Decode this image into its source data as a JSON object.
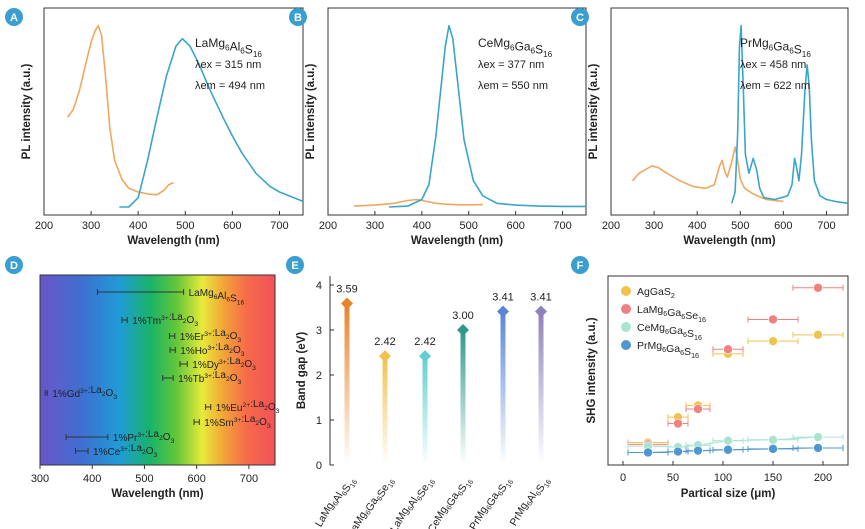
{
  "colors": {
    "badge": "#3a9fd0",
    "blue": "#3aa5c8",
    "orange": "#eea85f",
    "agg": "#f2c24e",
    "lamg": "#ef8181",
    "cemg": "#a8e4d0",
    "prmg": "#4f97d3"
  },
  "chart_data": [
    {
      "panel": "A",
      "type": "line",
      "xlabel": "Wavelength (nm)",
      "ylabel": "PL intensity (a.u.)",
      "xlim": [
        200,
        750
      ],
      "xticks": [
        "200",
        "300",
        "400",
        "500",
        "600",
        "700"
      ],
      "annot": {
        "compound": "LaMg6Al6S16",
        "ex": "λex = 315 nm",
        "em": "λem = 494 nm"
      },
      "series": [
        {
          "role": "excitation",
          "color": "orange",
          "x": [
            250,
            262,
            275,
            290,
            300,
            308,
            315,
            322,
            330,
            340,
            350,
            365,
            380,
            400,
            420,
            440,
            455,
            465,
            475
          ],
          "y": [
            0.48,
            0.52,
            0.62,
            0.78,
            0.88,
            0.94,
            0.97,
            0.92,
            0.72,
            0.42,
            0.25,
            0.15,
            0.1,
            0.08,
            0.07,
            0.065,
            0.09,
            0.12,
            0.13
          ]
        },
        {
          "role": "emission",
          "color": "blue",
          "x": [
            360,
            380,
            400,
            420,
            440,
            460,
            480,
            494,
            510,
            530,
            550,
            580,
            600,
            620,
            650,
            680,
            700,
            720,
            750
          ],
          "y": [
            0.0,
            0.0,
            0.05,
            0.25,
            0.48,
            0.7,
            0.86,
            0.9,
            0.86,
            0.76,
            0.64,
            0.48,
            0.38,
            0.29,
            0.18,
            0.11,
            0.08,
            0.06,
            0.03
          ]
        }
      ]
    },
    {
      "panel": "B",
      "type": "line",
      "xlabel": "Wavelength (nm)",
      "ylabel": "PL intensity (a.u.)",
      "xlim": [
        200,
        750
      ],
      "xticks": [
        "200",
        "300",
        "400",
        "500",
        "600",
        "700"
      ],
      "annot": {
        "compound": "CeMg6Ga6S16",
        "ex": "λex = 377 nm",
        "em": "λem = 550 nm"
      },
      "series": [
        {
          "role": "excitation",
          "color": "orange",
          "x": [
            255,
            300,
            340,
            370,
            390,
            410,
            430,
            450,
            480,
            510,
            530
          ],
          "y": [
            0.005,
            0.01,
            0.02,
            0.035,
            0.04,
            0.03,
            0.02,
            0.015,
            0.012,
            0.012,
            0.013
          ]
        },
        {
          "role": "emission",
          "color": "blue",
          "x": [
            330,
            370,
            400,
            415,
            430,
            440,
            450,
            458,
            466,
            475,
            490,
            510,
            530,
            560,
            600,
            650,
            700,
            750
          ],
          "y": [
            0.0,
            0.005,
            0.04,
            0.12,
            0.38,
            0.62,
            0.86,
            0.97,
            0.9,
            0.7,
            0.36,
            0.14,
            0.06,
            0.02,
            0.01,
            0.005,
            0.003,
            0.003
          ]
        }
      ]
    },
    {
      "panel": "C",
      "type": "line",
      "xlabel": "Wavelength (nm)",
      "ylabel": "PL intensity (a.u.)",
      "xlim": [
        200,
        750
      ],
      "xticks": [
        "200",
        "300",
        "400",
        "500",
        "600",
        "700"
      ],
      "annot": {
        "compound": "PrMg6Ga6S16",
        "ex": "λex = 458 nm",
        "em": "λem = 622 nm"
      },
      "series": [
        {
          "role": "excitation",
          "color": "orange",
          "x": [
            250,
            265,
            280,
            295,
            310,
            330,
            360,
            390,
            420,
            440,
            452,
            458,
            464,
            470,
            480,
            488,
            492,
            500,
            510,
            530,
            560,
            600
          ],
          "y": [
            0.14,
            0.18,
            0.2,
            0.22,
            0.21,
            0.18,
            0.14,
            0.11,
            0.1,
            0.12,
            0.22,
            0.25,
            0.19,
            0.16,
            0.24,
            0.32,
            0.28,
            0.15,
            0.1,
            0.07,
            0.04,
            0.03
          ]
        },
        {
          "role": "emission",
          "color": "blue",
          "x": [
            480,
            488,
            494,
            498,
            502,
            506,
            512,
            520,
            530,
            538,
            545,
            555,
            580,
            610,
            620,
            626,
            630,
            636,
            642,
            650,
            655,
            660,
            665,
            672,
            685,
            700,
            720,
            750
          ],
          "y": [
            0.02,
            0.08,
            0.4,
            0.85,
            0.97,
            0.7,
            0.28,
            0.18,
            0.26,
            0.2,
            0.1,
            0.05,
            0.04,
            0.06,
            0.12,
            0.26,
            0.22,
            0.14,
            0.28,
            0.62,
            0.76,
            0.65,
            0.36,
            0.14,
            0.06,
            0.04,
            0.03,
            0.02
          ]
        }
      ]
    },
    {
      "panel": "D",
      "type": "scatter",
      "xlabel": "Wavelength (nm)",
      "xlim": [
        300,
        750
      ],
      "xticks": [
        "300",
        "400",
        "500",
        "600",
        "700"
      ],
      "rows": [
        {
          "label": "LaMg6Al6S16",
          "center": 494,
          "lo": 410,
          "hi": 575
        },
        {
          "label": "1%Tm3+:La2O3",
          "center": 462,
          "lo": 457,
          "hi": 467
        },
        {
          "label": "1%Er3+:La2O3",
          "center": 553,
          "lo": 548,
          "hi": 558
        },
        {
          "label": "1%Ho3+:La2O3",
          "center": 554,
          "lo": 549,
          "hi": 559
        },
        {
          "label": "1%Dy3+:La2O3",
          "center": 575,
          "lo": 568,
          "hi": 582
        },
        {
          "label": "1%Tb3+:La2O3",
          "center": 545,
          "lo": 535,
          "hi": 555
        },
        {
          "label": "1%Gd3+:La2O3",
          "center": 312,
          "lo": 310,
          "hi": 314
        },
        {
          "label": "1%Eu2+:La2O3",
          "center": 622,
          "lo": 617,
          "hi": 627
        },
        {
          "label": "1%Sm3+:La2O3",
          "center": 600,
          "lo": 595,
          "hi": 605
        },
        {
          "label": "1%Pr3+:La2O3",
          "center": 390,
          "lo": 350,
          "hi": 430
        },
        {
          "label": "1%Ce3+:La2O3",
          "center": 380,
          "lo": 368,
          "hi": 392
        }
      ]
    },
    {
      "panel": "E",
      "type": "scatter",
      "ylabel": "Band gap (eV)",
      "ylim": [
        0,
        4.2
      ],
      "yticks": [
        "0",
        "1",
        "2",
        "3",
        "4"
      ],
      "categories": [
        "LaMg6Al6S16",
        "LaMg6Ga6Se16",
        "LaMg6Al6Se16",
        "CeMg6Ga6S16",
        "PrMg6Ga6S16",
        "PrMg6Al6S16"
      ],
      "values": [
        3.59,
        2.42,
        2.42,
        3.0,
        3.41,
        3.41
      ],
      "value_labels": [
        "3.59",
        "2.42",
        "2.42",
        "3.00",
        "3.41",
        "3.41"
      ],
      "colors": [
        "#e8842a",
        "#f2c14e",
        "#5fd0cf",
        "#2f9a8c",
        "#5b86d6",
        "#8f82b8"
      ]
    },
    {
      "panel": "F",
      "type": "scatter",
      "xlabel": "Partical size (μm)",
      "ylabel": "SHG intensity (a.u.)",
      "xlim": [
        -15,
        225
      ],
      "xticks": [
        "0",
        "50",
        "100",
        "150",
        "200"
      ],
      "x": [
        25,
        55,
        75,
        105,
        150,
        195
      ],
      "xerr": [
        20,
        10,
        12,
        15,
        25,
        25
      ],
      "series": [
        {
          "name": "AgGaS2",
          "color": "agg",
          "y": [
            0.16,
            0.44,
            0.57,
            1.14,
            1.28,
            1.35
          ]
        },
        {
          "name": "LaMg6Ga6Se16",
          "color": "lamg",
          "y": [
            0.14,
            0.37,
            0.53,
            1.19,
            1.52,
            1.87
          ]
        },
        {
          "name": "CeMg6Ga6S16",
          "color": "cemg",
          "y": [
            0.12,
            0.11,
            0.13,
            0.18,
            0.19,
            0.22
          ]
        },
        {
          "name": "PrMg6Ga6S16",
          "color": "prmg",
          "y": [
            0.05,
            0.06,
            0.07,
            0.08,
            0.09,
            0.1
          ]
        }
      ]
    }
  ]
}
